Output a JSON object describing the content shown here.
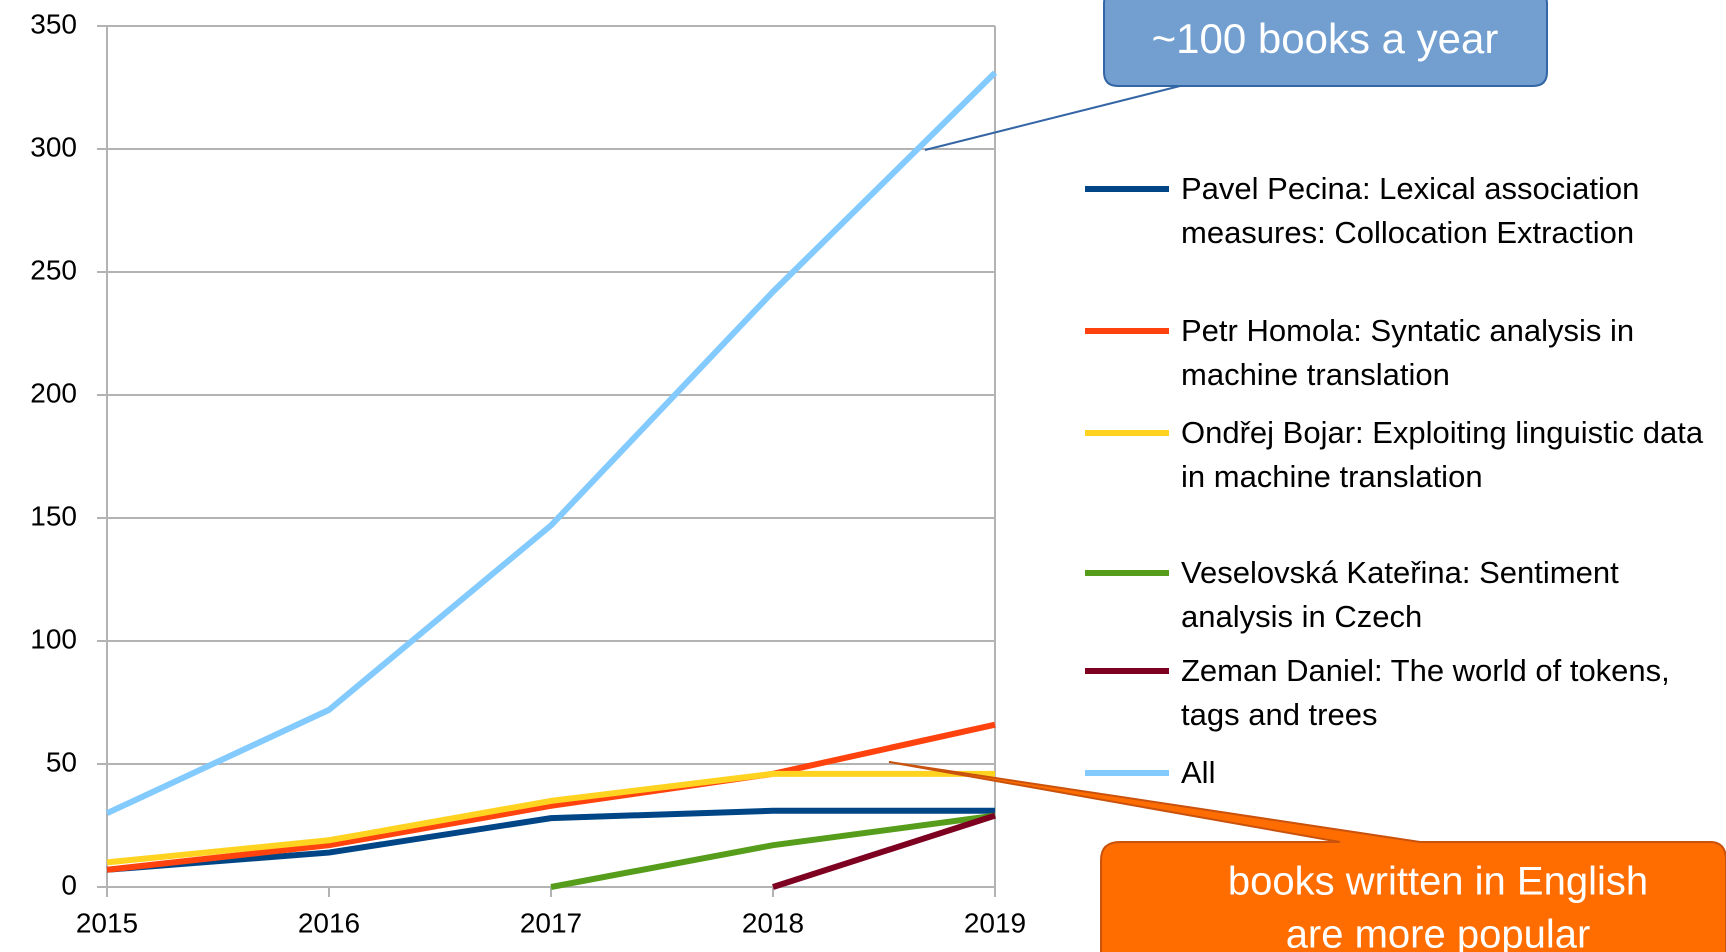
{
  "chart_data": {
    "type": "line",
    "x": [
      2015,
      2016,
      2017,
      2018,
      2019
    ],
    "xlim": [
      2015,
      2019
    ],
    "xticks": [
      2015,
      2016,
      2017,
      2018,
      2019
    ],
    "ylim": [
      0,
      350
    ],
    "yticks": [
      0,
      50,
      100,
      150,
      200,
      250,
      300,
      350
    ],
    "grid": true,
    "legend": "right",
    "series": [
      {
        "name": "Pavel Pecina: Lexical association measures: Collocation Extraction",
        "color": "#004586",
        "values": [
          7,
          14,
          28,
          31,
          31
        ]
      },
      {
        "name": "Petr Homola: Syntatic analysis in machine translation",
        "color": "#ff420e",
        "values": [
          7,
          17,
          33,
          46,
          66
        ]
      },
      {
        "name": "Ondřej Bojar: Exploiting linguistic data in machine translation",
        "color": "#ffd320",
        "values": [
          10,
          19,
          35,
          46,
          46
        ]
      },
      {
        "name": "Veselovská Kateřina: Sentiment analysis in Czech",
        "color": "#579d1c",
        "values": [
          null,
          null,
          0,
          17,
          29
        ]
      },
      {
        "name": "Zeman Daniel: The world of tokens, tags and trees",
        "color": "#7e0021",
        "values": [
          null,
          null,
          null,
          0,
          29
        ]
      },
      {
        "name": "All",
        "color": "#83caff",
        "values": [
          30,
          72,
          147,
          242,
          331
        ]
      }
    ],
    "annotations": [
      {
        "lines": [
          "~100 books a year"
        ]
      },
      {
        "lines": [
          "books written in English",
          "are more popular"
        ]
      }
    ]
  }
}
